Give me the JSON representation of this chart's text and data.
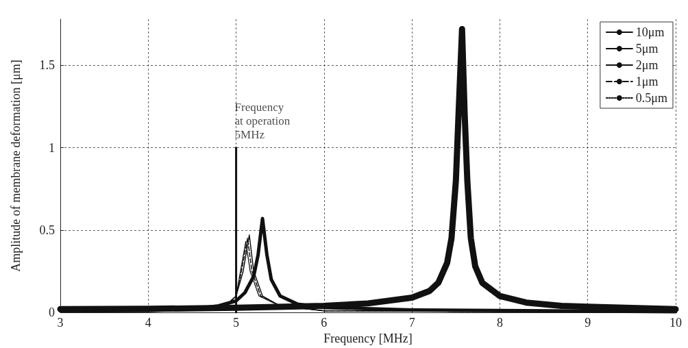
{
  "chart_data": {
    "type": "line",
    "xlabel": "Frequency [MHz]",
    "ylabel": "Amplitude of membrane deformation [μm]",
    "xlim": [
      3,
      10
    ],
    "xticks": [
      3,
      4,
      5,
      6,
      7,
      8,
      9,
      10
    ],
    "ylim": [
      0,
      1.78
    ],
    "yticks": [
      0,
      0.5,
      1,
      1.5
    ],
    "grid": true,
    "legend": "top right",
    "marker": "none",
    "annotations": [
      {
        "text": "Frequency\nat operation\n5MHz",
        "x": 5,
        "y": 1
      }
    ],
    "series": [
      {
        "name": "10μm",
        "color": "#111111",
        "line_style": "solid",
        "x": [
          3,
          4,
          5,
          6,
          6.5,
          7,
          7.2,
          7.3,
          7.4,
          7.45,
          7.5,
          7.53,
          7.57,
          7.6,
          7.63,
          7.67,
          7.72,
          7.8,
          8,
          8.3,
          8.7,
          9,
          10
        ],
        "values": [
          0.02,
          0.022,
          0.028,
          0.04,
          0.055,
          0.09,
          0.13,
          0.18,
          0.3,
          0.45,
          0.8,
          1.2,
          1.72,
          1.2,
          0.8,
          0.45,
          0.28,
          0.18,
          0.1,
          0.06,
          0.04,
          0.035,
          0.02
        ]
      },
      {
        "name": "5μm",
        "color": "#111111",
        "line_style": "solid",
        "x": [
          3,
          4,
          4.5,
          4.8,
          5,
          5.1,
          5.2,
          5.25,
          5.3,
          5.35,
          5.4,
          5.5,
          5.7,
          6,
          7,
          10
        ],
        "values": [
          0.01,
          0.012,
          0.02,
          0.04,
          0.07,
          0.12,
          0.22,
          0.35,
          0.57,
          0.35,
          0.2,
          0.1,
          0.05,
          0.03,
          0.015,
          0.005
        ]
      },
      {
        "name": "2μm",
        "color": "#111111",
        "line_style": "solid",
        "x": [
          3,
          4.5,
          4.9,
          5,
          5.08,
          5.15,
          5.2,
          5.3,
          5.5,
          6,
          10
        ],
        "values": [
          0.005,
          0.015,
          0.05,
          0.1,
          0.25,
          0.47,
          0.25,
          0.1,
          0.04,
          0.01,
          0.002
        ]
      },
      {
        "name": "1μm",
        "color": "#111111",
        "line_style": "dashed",
        "x": [
          3,
          4.5,
          4.9,
          5,
          5.06,
          5.13,
          5.18,
          5.28,
          5.5,
          6,
          10
        ],
        "values": [
          0.005,
          0.015,
          0.05,
          0.1,
          0.25,
          0.45,
          0.25,
          0.1,
          0.04,
          0.01,
          0.002
        ]
      },
      {
        "name": "0.5μm",
        "color": "#111111",
        "line_style": "dotted",
        "x": [
          3,
          4.5,
          4.9,
          5,
          5.05,
          5.11,
          5.16,
          5.26,
          5.5,
          6,
          10
        ],
        "values": [
          0.005,
          0.015,
          0.05,
          0.1,
          0.25,
          0.43,
          0.25,
          0.1,
          0.04,
          0.01,
          0.002
        ]
      },
      {
        "color": "#111111",
        "line_style": "solid",
        "x": [
          5,
          5
        ],
        "values": [
          0,
          1
        ]
      }
    ]
  }
}
